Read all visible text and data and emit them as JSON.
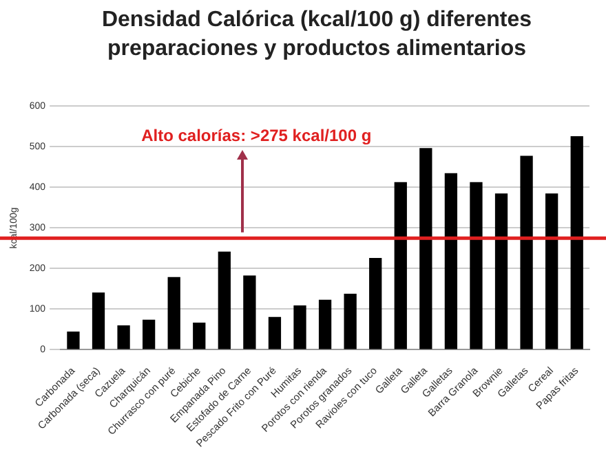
{
  "chart_data": {
    "type": "bar",
    "title": "Densidad Calórica (kcal/100 g) diferentes preparaciones y productos alimentarios",
    "ylabel": "kcal/100g",
    "categories": [
      "Carbonada",
      "Carbonada (seca)",
      "Cazuela",
      "Charquicán",
      "Churrasco con puré",
      "Cebiche",
      "Empanada Pino",
      "Estofado de Carne",
      "Pescado Frito con Puré",
      "Humitas",
      "Porotos con rienda",
      "Porotos granados",
      "Ravioles con tuco",
      "Galleta",
      "Galleta",
      "Galletas",
      "Barra Granola",
      "Brownie",
      "Galletas",
      "Cereal",
      "Papas fritas"
    ],
    "values": [
      45,
      141,
      60,
      74,
      179,
      67,
      242,
      183,
      81,
      109,
      123,
      138,
      226,
      413,
      497,
      435,
      413,
      385,
      478,
      385,
      526
    ],
    "color": "#000000",
    "ylim": [
      0,
      600
    ],
    "yticks": [
      0,
      100,
      200,
      300,
      400,
      500,
      600
    ],
    "grid": "y",
    "ref_lines": [
      {
        "axis": "y",
        "value": 275,
        "label": "Alto calorías: >275 kcal/100 g",
        "color": "#e02020"
      }
    ]
  }
}
